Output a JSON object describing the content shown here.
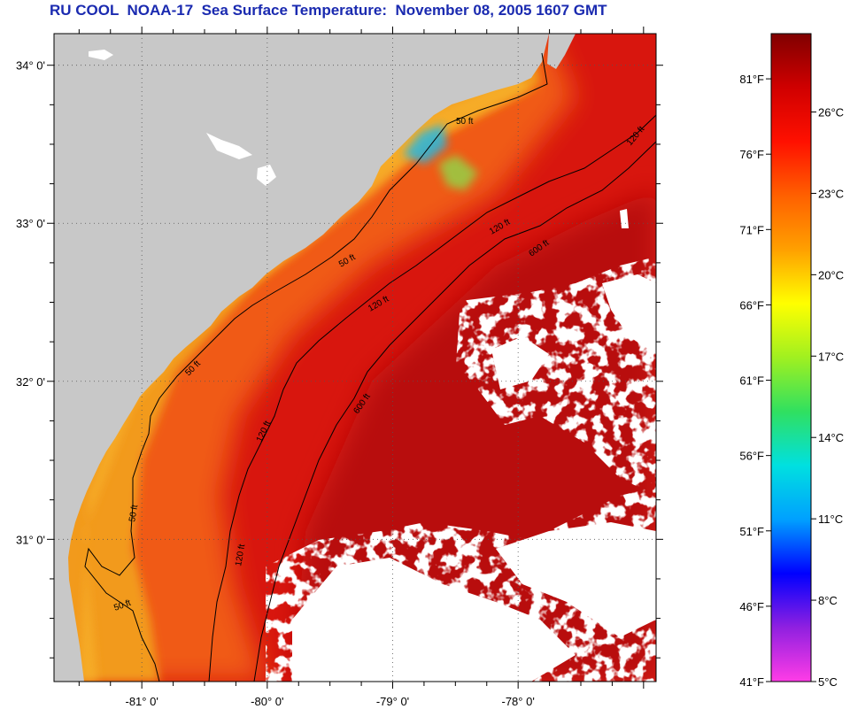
{
  "title": "RU COOL  NOAA-17  Sea Surface Temperature:  November 08, 2005 1607 GMT",
  "map": {
    "lat_ticks": [
      {
        "label": "34° 0'",
        "lat": 34
      },
      {
        "label": "33° 0'",
        "lat": 33
      },
      {
        "label": "32° 0'",
        "lat": 32
      },
      {
        "label": "31° 0'",
        "lat": 31
      }
    ],
    "lon_ticks": [
      {
        "label": "-81° 0'",
        "lon": -81
      },
      {
        "label": "-80° 0'",
        "lon": -80
      },
      {
        "label": "-79° 0'",
        "lon": -79
      },
      {
        "label": "-78° 0'",
        "lon": -78
      }
    ],
    "lat_range": [
      30.1,
      34.2
    ],
    "lon_range": [
      -81.7,
      -76.9
    ],
    "isobath_labels": [
      "50 ft",
      "120 ft",
      "600 ft"
    ],
    "colors": {
      "land": "#c8c8c8",
      "cloud": "#ffffff",
      "coast_water": "#f29a1c",
      "shelf_water": "#f05a12",
      "offshore_water": "#d8160e",
      "gulfstream": "#b80808",
      "cold_patch": "#25b8e0"
    }
  },
  "colorbar": {
    "min_f": 41,
    "max_f": 84,
    "fahrenheit_labels": [
      "81°F",
      "76°F",
      "71°F",
      "66°F",
      "61°F",
      "56°F",
      "51°F",
      "46°F",
      "41°F"
    ],
    "celsius_labels": [
      "26°C",
      "23°C",
      "20°C",
      "17°C",
      "14°C",
      "11°C",
      "8°C",
      "5°C"
    ],
    "stops": [
      "#ff3ce6",
      "#9020e0",
      "#0000ff",
      "#00a0ff",
      "#00e0e0",
      "#30e060",
      "#a0f020",
      "#ffff00",
      "#ffa000",
      "#ff6000",
      "#ff1000",
      "#d00000",
      "#800000"
    ]
  }
}
